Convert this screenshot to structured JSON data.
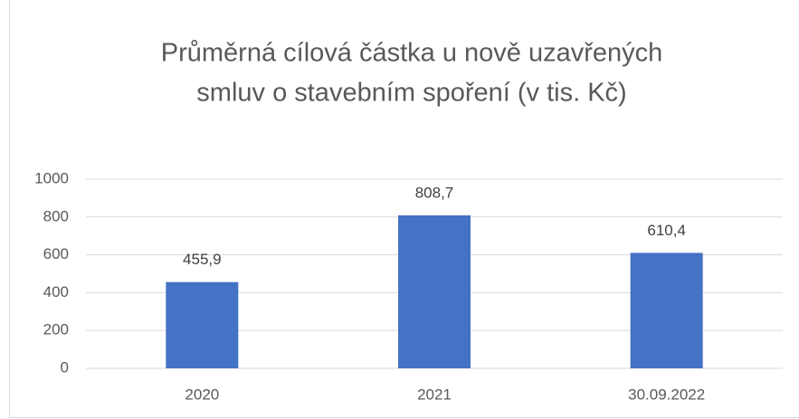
{
  "chart_data": {
    "type": "bar",
    "title": [
      "Průměrná cílová částka u nově uzavřených",
      "smluv o stavebním spoření (v tis. Kč)"
    ],
    "categories": [
      "2020",
      "2021",
      "30.09.2022"
    ],
    "values": [
      455.9,
      808.7,
      610.4
    ],
    "value_labels": [
      "455,9",
      "808,7",
      "610,4"
    ],
    "color": "#4472c4",
    "ylim": [
      0,
      1000
    ],
    "yticks": [
      0,
      200,
      400,
      600,
      800,
      1000
    ],
    "grid": true
  }
}
